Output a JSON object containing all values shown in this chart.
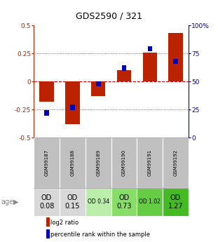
{
  "title": "GDS2590 / 321",
  "samples": [
    "GSM99187",
    "GSM99188",
    "GSM99189",
    "GSM99190",
    "GSM99191",
    "GSM99192"
  ],
  "log2_ratio": [
    -0.18,
    -0.38,
    -0.13,
    0.1,
    0.26,
    0.43
  ],
  "percentile_rank": [
    22,
    27,
    48,
    62,
    79,
    68
  ],
  "ylim_left": [
    -0.5,
    0.5
  ],
  "ylim_right": [
    0,
    100
  ],
  "yticks_left": [
    -0.5,
    -0.25,
    0,
    0.25,
    0.5
  ],
  "yticks_right": [
    0,
    25,
    50,
    75,
    100
  ],
  "ytick_labels_left": [
    "-0.5",
    "-0.25",
    "0",
    "0.25",
    "0.5"
  ],
  "ytick_labels_right": [
    "0",
    "25",
    "50",
    "75",
    "100%"
  ],
  "color_red": "#bb2200",
  "color_blue": "#0000bb",
  "color_zero_line": "#cc0000",
  "bar_width": 0.55,
  "blue_bar_width": 0.18,
  "age_label": "age",
  "age_values": [
    "OD\n0.08",
    "OD\n0.15",
    "OD 0.34",
    "OD\n0.73",
    "OD 1.02",
    "OD\n1.27"
  ],
  "age_fontsize": [
    7,
    7,
    5.5,
    7,
    5.5,
    7
  ],
  "age_colors": [
    "#d8d8d8",
    "#d8d8d8",
    "#bbeeaa",
    "#88dd66",
    "#66cc44",
    "#44bb22"
  ],
  "legend_log2": "log2 ratio",
  "legend_pct": "percentile rank within the sample",
  "gsm_bg": "#c0c0c0",
  "gsm_border": "#ffffff"
}
